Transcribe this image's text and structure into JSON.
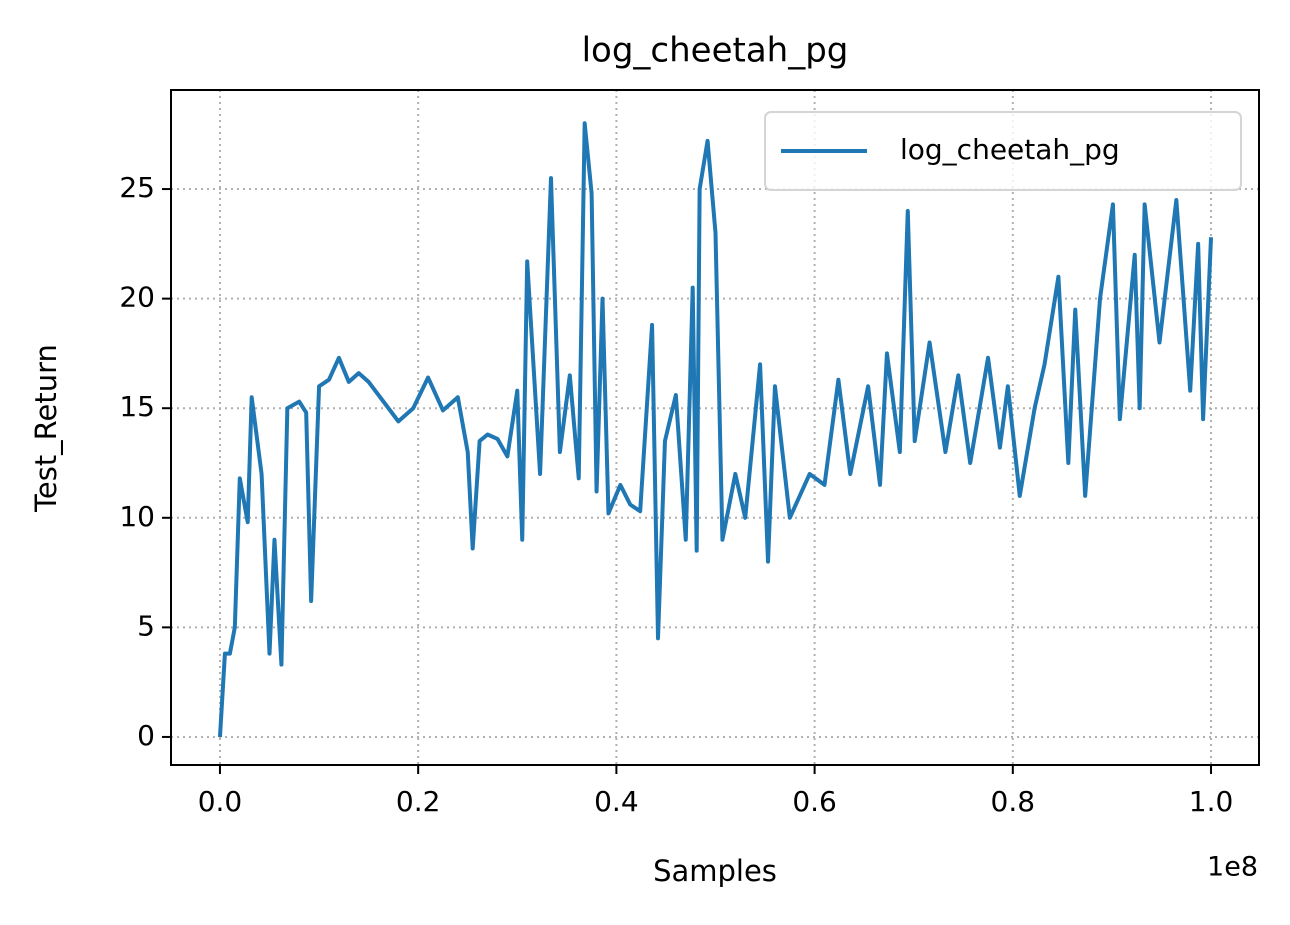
{
  "chart_data": {
    "type": "line",
    "title": "log_cheetah_pg",
    "x_label": "Samples",
    "y_label": "Test_Return",
    "x_offset_label": "1e8",
    "x": [
      0,
      500000,
      1000000,
      1500000,
      2000000,
      2800000,
      3200000,
      4200000,
      5000000,
      5500000,
      6200000,
      6800000,
      8000000,
      8700000,
      9200000,
      10000000,
      11000000,
      12000000,
      13000000,
      14000000,
      15000000,
      16000000,
      17000000,
      18000000,
      19500000,
      21000000,
      22500000,
      24000000,
      25000000,
      25500000,
      26200000,
      27000000,
      28000000,
      29000000,
      30000000,
      30500000,
      31000000,
      32300000,
      33400000,
      34300000,
      35300000,
      36200000,
      36800000,
      37500000,
      38000000,
      38600000,
      39200000,
      40400000,
      41400000,
      42400000,
      43600000,
      44200000,
      44900000,
      46000000,
      47000000,
      47700000,
      48100000,
      48400000,
      49200000,
      50000000,
      50700000,
      52000000,
      53000000,
      54500000,
      55300000,
      56000000,
      57500000,
      59500000,
      61000000,
      62400000,
      63600000,
      65400000,
      66600000,
      67300000,
      68600000,
      69400000,
      70100000,
      71600000,
      73200000,
      74500000,
      75700000,
      77500000,
      78700000,
      79500000,
      80700000,
      82200000,
      83200000,
      84600000,
      85600000,
      86300000,
      87300000,
      88800000,
      90100000,
      90800000,
      92300000,
      92800000,
      93300000,
      94800000,
      96500000,
      97900000,
      98700000,
      99200000,
      100000000
    ],
    "series": [
      {
        "name": "log_cheetah_pg",
        "color": "#1f77b4",
        "values": [
          0,
          3.8,
          3.8,
          5,
          11.8,
          9.8,
          15.5,
          12,
          3.8,
          9,
          3.3,
          15,
          15.3,
          14.8,
          6.2,
          16,
          16.3,
          17.3,
          16.2,
          16.6,
          16.2,
          15.6,
          15,
          14.4,
          15,
          16.4,
          14.9,
          15.5,
          13,
          8.6,
          13.5,
          13.8,
          13.6,
          12.8,
          15.8,
          9,
          21.7,
          12,
          25.5,
          13,
          16.5,
          11.8,
          28,
          24.8,
          11.2,
          20,
          10.2,
          11.5,
          10.6,
          10.3,
          18.8,
          4.5,
          13.5,
          15.6,
          9,
          20.5,
          8.5,
          25,
          27.2,
          23,
          9,
          12,
          10,
          17,
          8,
          16,
          10,
          12,
          11.5,
          16.3,
          12,
          16,
          11.5,
          17.5,
          13,
          24,
          13.5,
          18,
          13,
          16.5,
          12.5,
          17.3,
          13.2,
          16,
          11,
          15,
          17,
          21,
          12.5,
          19.5,
          11,
          20,
          24.3,
          14.5,
          22,
          15,
          24.3,
          18,
          24.5,
          15.8,
          22.5,
          14.5,
          22.8
        ]
      }
    ],
    "xlim": [
      -4940000,
      104840000
    ],
    "ylim": [
      -1.28,
      29.52
    ],
    "xticks": [
      {
        "value": 0,
        "label": "0.0"
      },
      {
        "value": 20000000,
        "label": "0.2"
      },
      {
        "value": 40000000,
        "label": "0.4"
      },
      {
        "value": 60000000,
        "label": "0.6"
      },
      {
        "value": 80000000,
        "label": "0.8"
      },
      {
        "value": 100000000,
        "label": "1.0"
      }
    ],
    "yticks": [
      0,
      5,
      10,
      15,
      20,
      25
    ],
    "grid": true,
    "legend": "upper right"
  }
}
